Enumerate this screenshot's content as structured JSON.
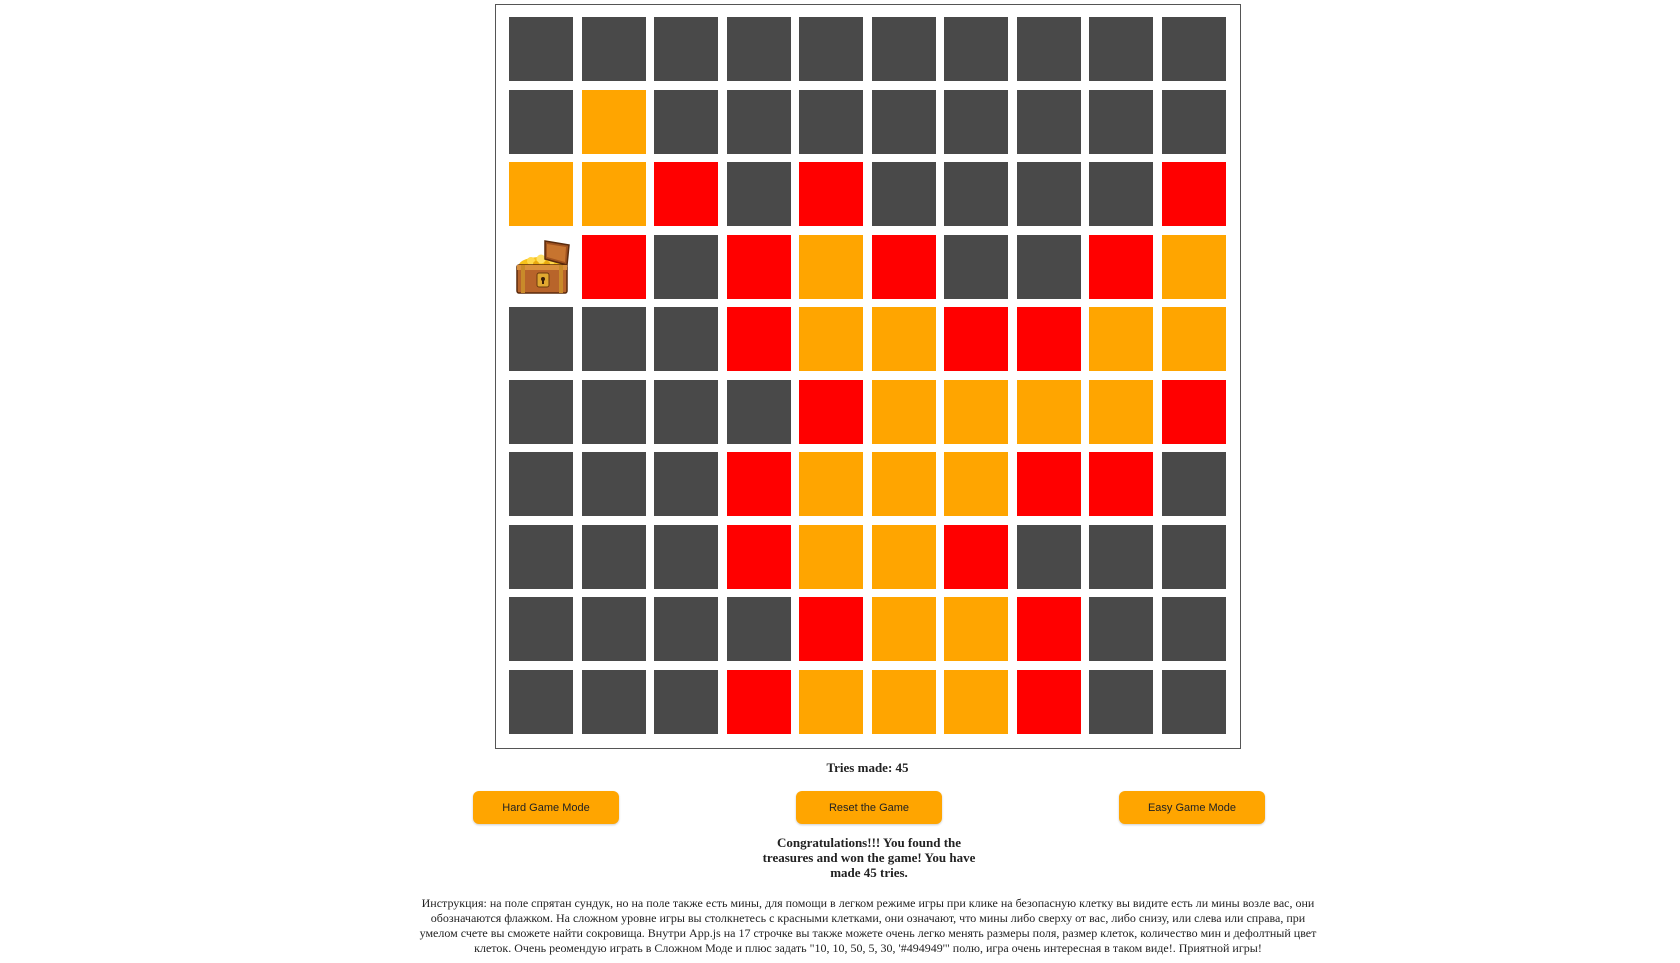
{
  "game": {
    "cell_colors": {
      "closed": "#494949",
      "safe": "#ffa500",
      "mine": "#ff0000"
    },
    "grid": [
      [
        "closed",
        "closed",
        "closed",
        "closed",
        "closed",
        "closed",
        "closed",
        "closed",
        "closed",
        "closed"
      ],
      [
        "closed",
        "safe",
        "closed",
        "closed",
        "closed",
        "closed",
        "closed",
        "closed",
        "closed",
        "closed"
      ],
      [
        "safe",
        "safe",
        "mine",
        "closed",
        "mine",
        "closed",
        "closed",
        "closed",
        "closed",
        "mine"
      ],
      [
        "treasure",
        "mine",
        "closed",
        "mine",
        "safe",
        "mine",
        "closed",
        "closed",
        "mine",
        "safe"
      ],
      [
        "closed",
        "closed",
        "closed",
        "mine",
        "safe",
        "safe",
        "mine",
        "mine",
        "safe",
        "safe"
      ],
      [
        "closed",
        "closed",
        "closed",
        "closed",
        "mine",
        "safe",
        "safe",
        "safe",
        "safe",
        "mine"
      ],
      [
        "closed",
        "closed",
        "closed",
        "mine",
        "safe",
        "safe",
        "safe",
        "mine",
        "mine",
        "closed"
      ],
      [
        "closed",
        "closed",
        "closed",
        "mine",
        "safe",
        "safe",
        "mine",
        "closed",
        "closed",
        "closed"
      ],
      [
        "closed",
        "closed",
        "closed",
        "closed",
        "mine",
        "safe",
        "safe",
        "mine",
        "closed",
        "closed"
      ],
      [
        "closed",
        "closed",
        "closed",
        "mine",
        "safe",
        "safe",
        "safe",
        "mine",
        "closed",
        "closed"
      ]
    ],
    "treasure_icon": "treasure-chest-icon"
  },
  "status": {
    "tries_text": "Tries made: 45"
  },
  "buttons": {
    "hard_label": "Hard Game Mode",
    "reset_label": "Reset the Game",
    "easy_label": "Easy Game Mode"
  },
  "messages": {
    "congrats_line1": "Congratulations!!! You found the",
    "congrats_line2": "treasures and won the game! You have",
    "congrats_line3": "made 45 tries.",
    "instructions_line1": "Инструкция: на поле спрятан сундук, но на поле также есть мины, для помощи в легком режиме игры при клике на безопасную клетку вы видите есть ли мины возле вас, они",
    "instructions_line2": "обозначаются флажком. На сложном уровне игры вы столкнетесь с красными клетками, они означают, что мины либо сверху от вас, либо снизу, или слева или справа, при",
    "instructions_line3": "умелом счете вы сможете найти сокровища. Внутри App.js на 17 строчке вы также можете очень легко менять размеры поля, размер клеток, количество мин и дефолтный цвет",
    "instructions_line4": "клеток. Очень реомендую играть в Сложном Моде и плюс задать \"10, 10, 50, 5, 30, '#494949'\" полю, игра очень интересная в таком виде!. Приятной игры!"
  }
}
